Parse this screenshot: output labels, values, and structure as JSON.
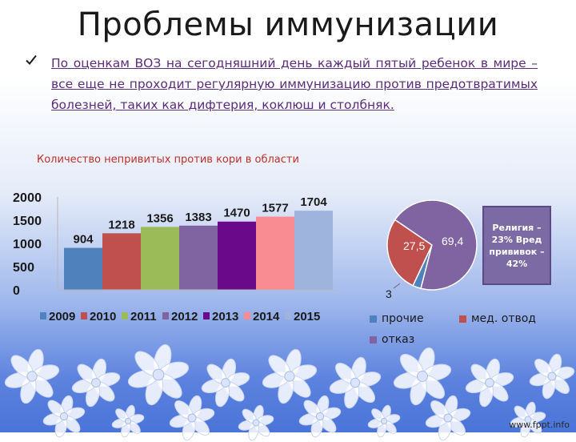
{
  "slide": {
    "title": "Проблемы иммунизации",
    "bullet": " По оценкам ВОЗ на сегодняшний день каждый пятый ребенок в мире – все еще не проходит регулярную иммунизацию против предотвратимых болезней, таких как дифтерия, коклюш и столбняк.",
    "chart_caption": "Количество непривитых против кори в области",
    "callout_text": "Религия – 23% Вред прививок – 42%",
    "watermark": "www.fppt.info"
  },
  "colors": {
    "accent_text": "#5a2d7a",
    "caption": "#c0302b",
    "callout_bg": "#7b6aa3"
  },
  "icons": {
    "bullet": "check-icon",
    "decoration": "flower-ornament"
  },
  "chart_data": [
    {
      "type": "bar",
      "categories": [
        "2009",
        "2010",
        "2011",
        "2012",
        "2013",
        "2014",
        "2015"
      ],
      "values": [
        904,
        1218,
        1356,
        1383,
        1470,
        1577,
        1704
      ],
      "ylim": [
        0,
        2000
      ],
      "yticks": [
        0,
        500,
        1000,
        1500,
        2000
      ],
      "colors": [
        "#4f81bd",
        "#c0504d",
        "#9bbb59",
        "#8064a2",
        "#6a0a8a",
        "#f98c92",
        "#9fb4dc"
      ],
      "legend_position": "bottom",
      "grid": false,
      "data_labels": true
    },
    {
      "type": "pie",
      "labels": [
        "прочие",
        "мед. отвод",
        "отказ"
      ],
      "values": [
        3,
        27.5,
        69.4
      ],
      "value_labels": [
        "3",
        "27,5",
        "69,4"
      ],
      "colors": [
        "#4f81bd",
        "#c0504d",
        "#8064a2"
      ],
      "legend_position": "bottom"
    }
  ]
}
